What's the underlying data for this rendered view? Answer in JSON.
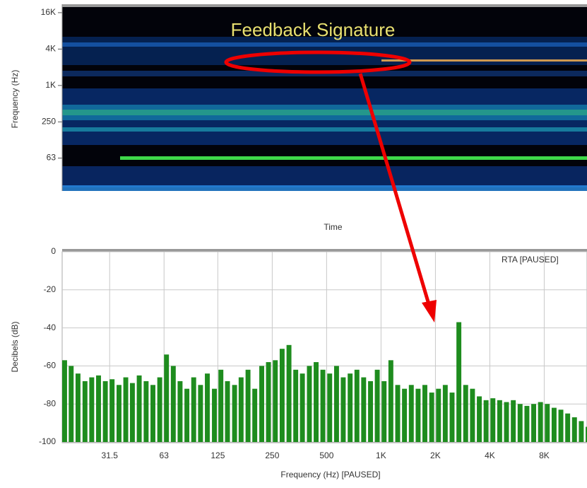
{
  "chart_data": [
    {
      "type": "spectrogram",
      "annotation": "Feedback Signature",
      "ylabel": "Frequency (Hz)",
      "xlabel": "Time",
      "ylog": true,
      "ylim": [
        18,
        19800
      ],
      "yticks": [
        {
          "value": 16000,
          "label": "16K"
        },
        {
          "value": 4000,
          "label": "4K"
        },
        {
          "value": 1000,
          "label": "1K"
        },
        250,
        63
      ]
    },
    {
      "type": "bar",
      "annotation": "RTA [PAUSED]",
      "ylabel": "Decibels (dB)",
      "xlabel": "Frequency (Hz) [PAUSED]",
      "xlog": true,
      "grid": true,
      "color": "#1e8c1e",
      "xlim": [
        17.2,
        13800
      ],
      "ylim": [
        -100,
        0
      ],
      "yticks": [
        0,
        -20,
        -40,
        -60,
        -80,
        -100
      ],
      "xticks": [
        31.5,
        63,
        125,
        250,
        500,
        {
          "value": 1000,
          "label": "1K"
        },
        {
          "value": 2000,
          "label": "2K"
        },
        {
          "value": 4000,
          "label": "4K"
        },
        {
          "value": 8000,
          "label": "8K"
        }
      ],
      "x": [
        17.2,
        18.7,
        20.4,
        22.3,
        24.3,
        26.5,
        28.9,
        31.5,
        34.4,
        37.5,
        40.8,
        44.5,
        48.6,
        53.0,
        57.8,
        63,
        68.7,
        74.9,
        81.7,
        89.1,
        97.2,
        106,
        116,
        126,
        137,
        150,
        163,
        178,
        194,
        212,
        231,
        252,
        275,
        300,
        327,
        356,
        389,
        424,
        462,
        504,
        550,
        599,
        654,
        713,
        777,
        848,
        924,
        1008,
        1099,
        1199,
        1307,
        1426,
        1555,
        1695,
        1849,
        2016,
        2198,
        2397,
        2614,
        2851,
        3109,
        3391,
        3697,
        4032,
        4397,
        4795,
        5229,
        5702,
        6219,
        6781,
        7395,
        8064,
        8794,
        9590,
        10458,
        11404,
        12436,
        13562
      ],
      "values": [
        -57,
        -60,
        -64,
        -68,
        -66,
        -65,
        -68,
        -67,
        -70,
        -66,
        -69,
        -65,
        -68,
        -70,
        -66,
        -54,
        -60,
        -68,
        -72,
        -66,
        -70,
        -64,
        -72,
        -62,
        -68,
        -70,
        -66,
        -62,
        -72,
        -60,
        -58,
        -57,
        -51,
        -49,
        -62,
        -64,
        -60,
        -58,
        -62,
        -64,
        -60,
        -66,
        -64,
        -62,
        -66,
        -68,
        -62,
        -68,
        -57,
        -70,
        -72,
        -70,
        -72,
        -70,
        -74,
        -72,
        -70,
        -74,
        -37,
        -70,
        -72,
        -76,
        -78,
        -77,
        -78,
        -79,
        -78,
        -80,
        -81,
        -80,
        -79,
        -80,
        -82,
        -83,
        -85,
        -87,
        -89,
        -92
      ]
    }
  ]
}
